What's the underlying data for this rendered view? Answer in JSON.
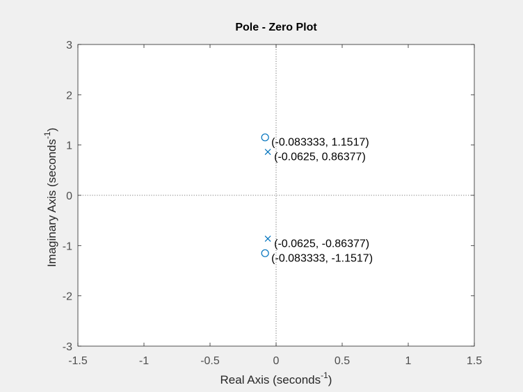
{
  "chart_data": {
    "type": "scatter",
    "title": "Pole - Zero Plot",
    "xlabel": {
      "text": "Real Axis (seconds",
      "sup": "-1",
      "close": ")"
    },
    "ylabel": {
      "text": "Imaginary Axis (seconds",
      "sup": "-1",
      "close": ")"
    },
    "xlim": [
      -1.5,
      1.5
    ],
    "ylim": [
      -3,
      3
    ],
    "xticks": [
      -1.5,
      -1,
      -0.5,
      0,
      0.5,
      1,
      1.5
    ],
    "xtick_labels": [
      "-1.5",
      "-1",
      "-0.5",
      "0",
      "0.5",
      "1",
      "1.5"
    ],
    "yticks": [
      -3,
      -2,
      -1,
      0,
      1,
      2,
      3
    ],
    "ytick_labels": [
      "-3",
      "-2",
      "-1",
      "0",
      "1",
      "2",
      "3"
    ],
    "grid": false,
    "zero_lines": true,
    "marker_color": "#0072bd",
    "background": "#ffffff",
    "figure_background": "#f0f0f0",
    "poles": [
      {
        "x": -0.0625,
        "y": 0.86377,
        "label": "(-0.0625, 0.86377)"
      },
      {
        "x": -0.0625,
        "y": -0.86377,
        "label": "(-0.0625, -0.86377)"
      }
    ],
    "zeros": [
      {
        "x": -0.083333,
        "y": 1.1517,
        "label": "(-0.083333, 1.1517)"
      },
      {
        "x": -0.083333,
        "y": -1.1517,
        "label": "(-0.083333, -1.1517)"
      }
    ]
  }
}
